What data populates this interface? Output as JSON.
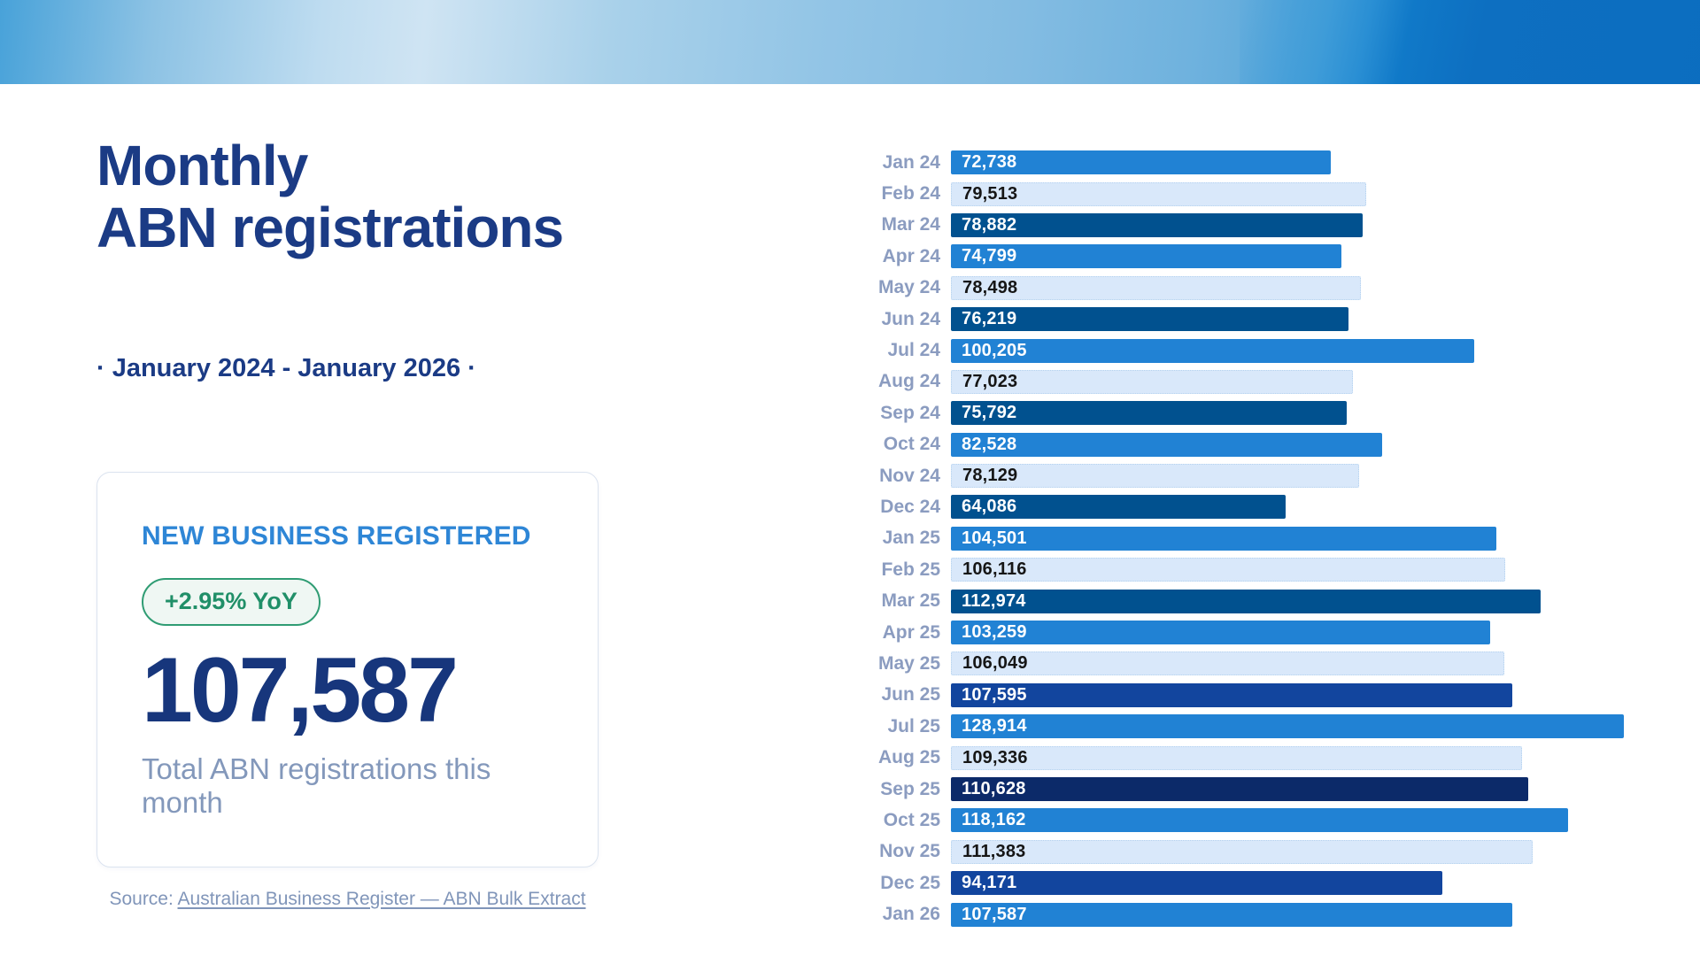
{
  "header": {
    "title_line1": "Monthly",
    "title_line2": "ABN registrations",
    "subtitle": "· January 2024 - January 2026 ·"
  },
  "card": {
    "label": "NEW BUSINESS REGISTERED",
    "badge": "+2.95% YoY",
    "value": "107,587",
    "caption": "Total ABN registrations this month"
  },
  "source": {
    "prefix": "Source: ",
    "link_text": "Australian Business Register — ABN Bulk Extract"
  },
  "colors": {
    "navy_text": "#1b3b85",
    "accent_blue": "#2e86d6",
    "badge_green": "#208f68",
    "badge_border": "#2f9c73",
    "muted_blue_text": "#8398bb",
    "banner_light": "#cfe4f3",
    "banner_mid": "#5ba8da",
    "banner_deep": "#0d6fc1"
  },
  "chart_data": {
    "type": "bar",
    "orientation": "horizontal",
    "title": "",
    "xlabel": "",
    "ylabel": "",
    "xmax": 128914,
    "grid": false,
    "legend": false,
    "bar_colors": {
      "medium": "#2182d4",
      "light": "#d9e8fa",
      "dark": "#01518f",
      "royal": "#12459e",
      "navy": "#0c2a69"
    },
    "value_text_on_light": "#161616",
    "value_text_on_dark": "#ffffff",
    "rows": [
      {
        "label": "Jan 24",
        "value": 72738,
        "display": "72,738",
        "shade": "medium"
      },
      {
        "label": "Feb 24",
        "value": 79513,
        "display": "79,513",
        "shade": "light"
      },
      {
        "label": "Mar 24",
        "value": 78882,
        "display": "78,882",
        "shade": "dark"
      },
      {
        "label": "Apr 24",
        "value": 74799,
        "display": "74,799",
        "shade": "medium"
      },
      {
        "label": "May 24",
        "value": 78498,
        "display": "78,498",
        "shade": "light"
      },
      {
        "label": "Jun 24",
        "value": 76219,
        "display": "76,219",
        "shade": "dark"
      },
      {
        "label": "Jul 24",
        "value": 100205,
        "display": "100,205",
        "shade": "medium"
      },
      {
        "label": "Aug 24",
        "value": 77023,
        "display": "77,023",
        "shade": "light"
      },
      {
        "label": "Sep 24",
        "value": 75792,
        "display": "75,792",
        "shade": "dark"
      },
      {
        "label": "Oct 24",
        "value": 82528,
        "display": "82,528",
        "shade": "medium"
      },
      {
        "label": "Nov 24",
        "value": 78129,
        "display": "78,129",
        "shade": "light"
      },
      {
        "label": "Dec 24",
        "value": 64086,
        "display": "64,086",
        "shade": "dark"
      },
      {
        "label": "Jan 25",
        "value": 104501,
        "display": "104,501",
        "shade": "medium"
      },
      {
        "label": "Feb 25",
        "value": 106116,
        "display": "106,116",
        "shade": "light"
      },
      {
        "label": "Mar 25",
        "value": 112974,
        "display": "112,974",
        "shade": "dark"
      },
      {
        "label": "Apr 25",
        "value": 103259,
        "display": "103,259",
        "shade": "medium"
      },
      {
        "label": "May 25",
        "value": 106049,
        "display": "106,049",
        "shade": "light"
      },
      {
        "label": "Jun 25",
        "value": 107595,
        "display": "107,595",
        "shade": "royal"
      },
      {
        "label": "Jul 25",
        "value": 128914,
        "display": "128,914",
        "shade": "medium"
      },
      {
        "label": "Aug 25",
        "value": 109336,
        "display": "109,336",
        "shade": "light"
      },
      {
        "label": "Sep 25",
        "value": 110628,
        "display": "110,628",
        "shade": "navy"
      },
      {
        "label": "Oct 25",
        "value": 118162,
        "display": "118,162",
        "shade": "medium"
      },
      {
        "label": "Nov 25",
        "value": 111383,
        "display": "111,383",
        "shade": "light"
      },
      {
        "label": "Dec 25",
        "value": 94171,
        "display": "94,171",
        "shade": "royal"
      },
      {
        "label": "Jan 26",
        "value": 107587,
        "display": "107,587",
        "shade": "medium"
      }
    ]
  }
}
